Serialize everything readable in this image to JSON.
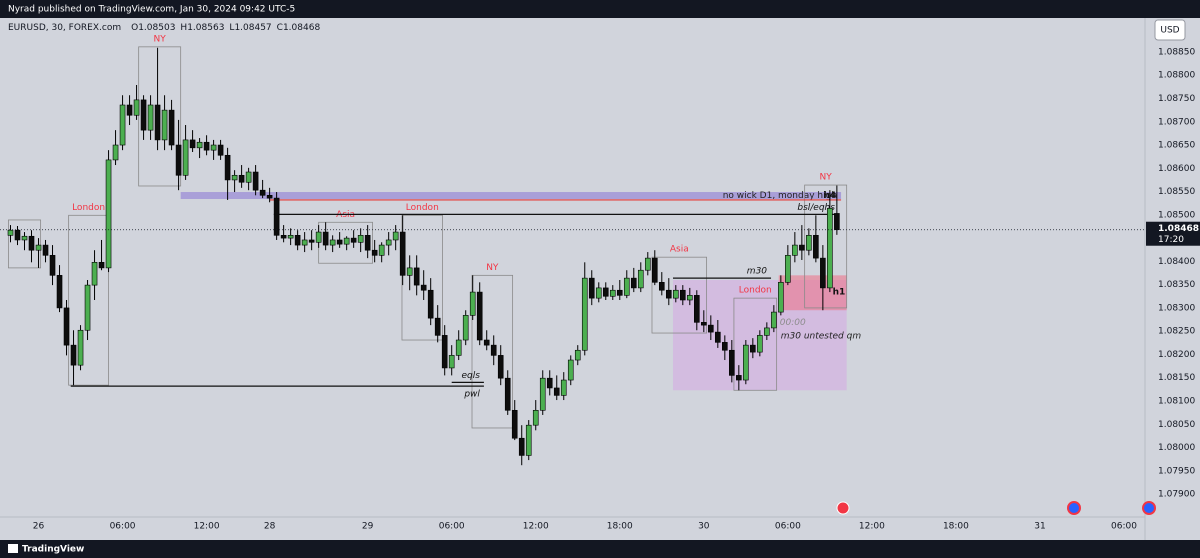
{
  "header": {
    "publisher": "Nyrad published on TradingView.com, Jan 30, 2024 09:42 UTC-5"
  },
  "footer": {
    "brand": "TradingView"
  },
  "chart_data": {
    "type": "candlestick",
    "symbol": "EURUSD, 30, FOREX.com",
    "ohlc_prefixes": [
      "O",
      "H",
      "L",
      "C"
    ],
    "currency": "USD",
    "countdown": "17:20",
    "up_color": "#4caf50",
    "down_color": "#0d0d0d",
    "session_color": "#8a8a8a",
    "session_label_color": "#f23645",
    "grid": false,
    "open": [
      1.08456,
      1.08467,
      1.08446,
      1.08454,
      1.08424,
      1.08435,
      1.08413,
      1.0837,
      1.083,
      1.0822,
      1.08177,
      1.08252,
      1.08349,
      1.08398,
      1.08386,
      1.08618,
      1.0865,
      1.08736,
      1.08714,
      1.08747,
      1.08682,
      1.08736,
      1.08661,
      1.08725,
      1.0865,
      1.08585,
      1.08661,
      1.08644,
      1.08656,
      1.08639,
      1.0865,
      1.08628,
      1.08575,
      1.08585,
      1.0857,
      1.08592,
      1.08553,
      1.08542,
      1.08536,
      1.08456,
      1.0845,
      1.08456,
      1.08435,
      1.08446,
      1.08441,
      1.08463,
      1.08435,
      1.08446,
      1.08437,
      1.0845,
      1.08441,
      1.08456,
      1.08424,
      1.08413,
      1.08435,
      1.08446,
      1.08463,
      1.0837,
      1.08386,
      1.08349,
      1.08338,
      1.08278,
      1.08241,
      1.08171,
      1.08198,
      1.08231,
      1.08284,
      1.08334,
      1.08231,
      1.0822,
      1.08198,
      1.08149,
      1.0808,
      1.0802,
      1.07983,
      1.08048,
      1.0808,
      1.08149,
      1.08128,
      1.08112,
      1.08145,
      1.08188,
      1.08209,
      1.08364,
      1.08321,
      1.08343,
      1.08325,
      1.08338,
      1.08327,
      1.08364,
      1.08343,
      1.08381,
      1.08407,
      1.08355,
      1.08338,
      1.08321,
      1.08338,
      1.08317,
      1.08327,
      1.08269,
      1.08263,
      1.08248,
      1.08226,
      1.08209,
      1.08155,
      1.08145,
      1.0822,
      1.08205,
      1.08241,
      1.08257,
      1.08291,
      1.08355,
      1.08413,
      1.08435,
      1.08424,
      1.08456,
      1.08407,
      1.08343,
      1.08503
    ],
    "high": [
      1.08478,
      1.08476,
      1.08463,
      1.08467,
      1.0845,
      1.08446,
      1.08435,
      1.08392,
      1.08317,
      1.08252,
      1.08263,
      1.0836,
      1.08424,
      1.08446,
      1.08639,
      1.08682,
      1.08757,
      1.08757,
      1.08779,
      1.08757,
      1.08757,
      1.08859,
      1.08757,
      1.08747,
      1.08704,
      1.08693,
      1.08682,
      1.08665,
      1.08671,
      1.08661,
      1.08661,
      1.08644,
      1.08596,
      1.08607,
      1.08601,
      1.08607,
      1.08575,
      1.08558,
      1.08549,
      1.08478,
      1.08471,
      1.08467,
      1.08463,
      1.08467,
      1.08478,
      1.08484,
      1.08456,
      1.08463,
      1.08454,
      1.08467,
      1.08471,
      1.08478,
      1.08446,
      1.08441,
      1.08463,
      1.08478,
      1.08499,
      1.08413,
      1.08413,
      1.08381,
      1.08364,
      1.08306,
      1.08263,
      1.0822,
      1.08252,
      1.08295,
      1.0837,
      1.08355,
      1.08252,
      1.08241,
      1.0822,
      1.08166,
      1.08102,
      1.08048,
      1.08059,
      1.08102,
      1.08166,
      1.08166,
      1.08155,
      1.08162,
      1.08198,
      1.0822,
      1.08398,
      1.08381,
      1.08355,
      1.08355,
      1.08349,
      1.0836,
      1.08381,
      1.08386,
      1.08398,
      1.0842,
      1.08424,
      1.08377,
      1.08364,
      1.08349,
      1.08349,
      1.08343,
      1.08338,
      1.08295,
      1.08284,
      1.08274,
      1.08241,
      1.08231,
      1.08177,
      1.08231,
      1.08235,
      1.08252,
      1.08269,
      1.08306,
      1.0837,
      1.08435,
      1.08463,
      1.08478,
      1.08471,
      1.08499,
      1.08435,
      1.08553,
      1.08563
    ],
    "low": [
      1.08441,
      1.08435,
      1.08424,
      1.08398,
      1.08386,
      1.08398,
      1.08349,
      1.08291,
      1.08198,
      1.08134,
      1.08166,
      1.08231,
      1.08317,
      1.08381,
      1.08377,
      1.08607,
      1.08639,
      1.08693,
      1.08704,
      1.08661,
      1.08661,
      1.08639,
      1.08639,
      1.08639,
      1.08553,
      1.08575,
      1.08635,
      1.08622,
      1.08628,
      1.08618,
      1.08618,
      1.08532,
      1.08549,
      1.08558,
      1.08553,
      1.08542,
      1.08536,
      1.08527,
      1.08446,
      1.08441,
      1.08435,
      1.08424,
      1.0842,
      1.08424,
      1.08429,
      1.08424,
      1.0842,
      1.08429,
      1.08424,
      1.08429,
      1.0842,
      1.08407,
      1.08398,
      1.08398,
      1.08413,
      1.08424,
      1.08349,
      1.08338,
      1.08327,
      1.08317,
      1.08263,
      1.08226,
      1.08155,
      1.08155,
      1.08188,
      1.0822,
      1.08274,
      1.0822,
      1.08209,
      1.08177,
      1.08134,
      1.0807,
      1.08016,
      1.07962,
      1.07973,
      1.08037,
      1.0807,
      1.08112,
      1.08102,
      1.08102,
      1.08134,
      1.08177,
      1.08198,
      1.08306,
      1.08312,
      1.08317,
      1.08317,
      1.08317,
      1.08321,
      1.08334,
      1.08334,
      1.0837,
      1.08349,
      1.08327,
      1.08306,
      1.08312,
      1.08306,
      1.08306,
      1.08252,
      1.08248,
      1.08231,
      1.08214,
      1.08188,
      1.0814,
      1.08123,
      1.08136,
      1.08192,
      1.08196,
      1.08231,
      1.08248,
      1.08284,
      1.08349,
      1.08398,
      1.08403,
      1.08413,
      1.08398,
      1.08295,
      1.08334,
      1.08457
    ],
    "close": [
      1.08467,
      1.08446,
      1.08454,
      1.08424,
      1.08435,
      1.08413,
      1.0837,
      1.083,
      1.0822,
      1.08177,
      1.08252,
      1.08349,
      1.08398,
      1.08386,
      1.08618,
      1.0865,
      1.08736,
      1.08714,
      1.08747,
      1.08682,
      1.08736,
      1.08661,
      1.08725,
      1.0865,
      1.08585,
      1.08661,
      1.08644,
      1.08656,
      1.08639,
      1.0865,
      1.08628,
      1.08575,
      1.08585,
      1.0857,
      1.08592,
      1.08553,
      1.08542,
      1.08536,
      1.08456,
      1.0845,
      1.08456,
      1.08435,
      1.08446,
      1.08441,
      1.08463,
      1.08435,
      1.08446,
      1.08437,
      1.0845,
      1.08441,
      1.08456,
      1.08424,
      1.08413,
      1.08435,
      1.08446,
      1.08463,
      1.0837,
      1.08386,
      1.08349,
      1.08338,
      1.08278,
      1.08241,
      1.08171,
      1.08198,
      1.08231,
      1.08284,
      1.08334,
      1.08231,
      1.0822,
      1.08198,
      1.08149,
      1.0808,
      1.0802,
      1.07983,
      1.08048,
      1.0808,
      1.08149,
      1.08128,
      1.08112,
      1.08145,
      1.08188,
      1.08209,
      1.08364,
      1.08321,
      1.08343,
      1.08325,
      1.08338,
      1.08327,
      1.08364,
      1.08343,
      1.08381,
      1.08407,
      1.08355,
      1.08338,
      1.08321,
      1.08338,
      1.08317,
      1.08327,
      1.08269,
      1.08263,
      1.08248,
      1.08226,
      1.08209,
      1.08155,
      1.08145,
      1.0822,
      1.08205,
      1.08241,
      1.08257,
      1.08291,
      1.08355,
      1.08413,
      1.08435,
      1.08424,
      1.08456,
      1.08407,
      1.08343,
      1.08514,
      1.08468
    ],
    "xlim": [
      -1.5,
      162
    ],
    "xticks": [
      {
        "value": 4,
        "label": "26"
      },
      {
        "value": 16,
        "label": "06:00"
      },
      {
        "value": 28,
        "label": "12:00"
      },
      {
        "value": 37,
        "label": "28"
      },
      {
        "value": 51,
        "label": "29"
      },
      {
        "value": 63,
        "label": "06:00"
      },
      {
        "value": 75,
        "label": "12:00"
      },
      {
        "value": 87,
        "label": "18:00"
      },
      {
        "value": 99,
        "label": "30"
      },
      {
        "value": 111,
        "label": "06:00"
      },
      {
        "value": 123,
        "label": "12:00"
      },
      {
        "value": 135,
        "label": "18:00"
      },
      {
        "value": 147,
        "label": "31"
      },
      {
        "value": 159,
        "label": "06:00"
      }
    ],
    "ylim": [
      1.07855,
      1.0888
    ],
    "yticks": [
      {
        "value": 1.0885,
        "label": "1.08850"
      },
      {
        "value": 1.088,
        "label": "1.08800"
      },
      {
        "value": 1.0875,
        "label": "1.08750"
      },
      {
        "value": 1.087,
        "label": "1.08700"
      },
      {
        "value": 1.0865,
        "label": "1.08650"
      },
      {
        "value": 1.086,
        "label": "1.08600"
      },
      {
        "value": 1.0855,
        "label": "1.08550"
      },
      {
        "value": 1.085,
        "label": "1.08500"
      },
      {
        "value": 1.084,
        "label": "1.08400"
      },
      {
        "value": 1.0835,
        "label": "1.08350"
      },
      {
        "value": 1.083,
        "label": "1.08300"
      },
      {
        "value": 1.0825,
        "label": "1.08250"
      },
      {
        "value": 1.082,
        "label": "1.08200"
      },
      {
        "value": 1.0815,
        "label": "1.08150"
      },
      {
        "value": 1.081,
        "label": "1.08100"
      },
      {
        "value": 1.0805,
        "label": "1.08050"
      },
      {
        "value": 1.08,
        "label": "1.08000"
      },
      {
        "value": 1.0795,
        "label": "1.07950"
      },
      {
        "value": 1.079,
        "label": "1.07900"
      }
    ],
    "zones": [
      {
        "kind": "fill",
        "x": [
          94.6,
          119.4
        ],
        "y": [
          1.08123,
          1.0836
        ],
        "color": "rgba(214,168,228,0.55)"
      },
      {
        "kind": "fill",
        "label": "m30 untested qm",
        "label_position": "bottom-left",
        "x": [
          109.7,
          119.4
        ],
        "y": [
          1.08295,
          1.0837
        ],
        "color": "rgba(236,118,140,0.6)"
      },
      {
        "kind": "fill",
        "label": "no wick D1, monday high",
        "label_position": "inside-right",
        "x": [
          24.3,
          118.6
        ],
        "y": [
          1.08534,
          1.08549
        ],
        "color": "#a99fd8"
      },
      {
        "kind": "session",
        "x": [
          -0.3,
          4.3
        ],
        "y": [
          1.08386,
          1.08489
        ]
      },
      {
        "kind": "session",
        "label": "London",
        "label_position": "top",
        "x": [
          8.3,
          14
        ],
        "y": [
          1.08134,
          1.08499
        ]
      },
      {
        "kind": "session",
        "label": "NY",
        "label_position": "top",
        "x": [
          18.3,
          24.3
        ],
        "y": [
          1.08562,
          1.08861
        ]
      },
      {
        "kind": "session",
        "label": "Asia",
        "label_position": "top",
        "x": [
          44,
          51.7
        ],
        "y": [
          1.08396,
          1.08484
        ]
      },
      {
        "kind": "session",
        "label": "London",
        "label_position": "top",
        "x": [
          55.9,
          61.7
        ],
        "y": [
          1.08231,
          1.08499
        ]
      },
      {
        "kind": "session",
        "label": "NY",
        "label_position": "top",
        "x": [
          65.9,
          71.7
        ],
        "y": [
          1.08042,
          1.0837
        ]
      },
      {
        "kind": "session",
        "label": "Asia",
        "label_position": "top",
        "x": [
          91.6,
          99.4
        ],
        "y": [
          1.08246,
          1.08409
        ]
      },
      {
        "kind": "session",
        "label": "London",
        "label_position": "top",
        "x": [
          103.3,
          109.4
        ],
        "y": [
          1.08123,
          1.08321
        ]
      },
      {
        "kind": "session",
        "label": "NY",
        "label_position": "top",
        "x": [
          113.4,
          119.4
        ],
        "y": [
          1.083,
          1.08564
        ]
      }
    ],
    "levels": [
      {
        "price": 1.08532,
        "x": [
          37,
          118.6
        ],
        "color": "#e53935"
      },
      {
        "label": "bsl/eqhs",
        "label_position": "above-right",
        "price": 1.08501,
        "x": [
          37.6,
          118.3
        ],
        "color": "#111111"
      },
      {
        "label": "pwl",
        "label_position": "below-right",
        "price": 1.08132,
        "x": [
          8.6,
          67.6
        ],
        "color": "#111111"
      },
      {
        "label": "eqls",
        "label_position": "above-right",
        "price": 1.0814,
        "x": [
          63,
          67.6
        ],
        "color": "#111111"
      },
      {
        "label": "m30",
        "label_position": "above-right",
        "price": 1.08364,
        "x": [
          94.6,
          108.6
        ],
        "color": "#111111"
      }
    ],
    "markers": [
      {
        "label": "h4",
        "x": 117,
        "price": 1.08542,
        "color": "#111111"
      },
      {
        "label": "h1",
        "x": 118.3,
        "price": 1.08334,
        "color": "#111111"
      },
      {
        "label": "00:00",
        "x": 111.7,
        "price": 1.08269,
        "color": "#8c8c8c"
      }
    ]
  }
}
